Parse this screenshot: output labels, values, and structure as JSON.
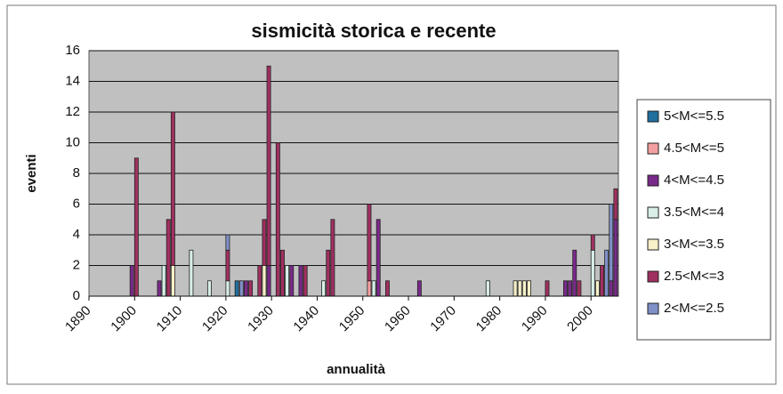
{
  "chart_data": {
    "type": "bar",
    "stacked": true,
    "title": "sismicità storica e recente",
    "x_label": "annualità",
    "y_label": "eventi",
    "x": [
      1899,
      1900,
      1905,
      1906,
      1907,
      1908,
      1912,
      1916,
      1920,
      1922,
      1923,
      1924,
      1925,
      1927,
      1928,
      1929,
      1931,
      1932,
      1933,
      1934,
      1936,
      1937,
      1941,
      1942,
      1943,
      1951,
      1952,
      1953,
      1955,
      1962,
      1977,
      1983,
      1984,
      1985,
      1986,
      1990,
      1994,
      1995,
      1996,
      1997,
      2000,
      2001,
      2002,
      2003,
      2004,
      2005
    ],
    "series": [
      {
        "name": "5<M<=5.5",
        "color": "#1f6f9f",
        "values": [
          0,
          0,
          0,
          0,
          0,
          0,
          0,
          0,
          0,
          1,
          0,
          0,
          0,
          0,
          0,
          0,
          0,
          0,
          0,
          0,
          0,
          0,
          0,
          0,
          0,
          0,
          0,
          0,
          0,
          0,
          0,
          0,
          0,
          0,
          0,
          0,
          0,
          0,
          0,
          0,
          0,
          0,
          0,
          0,
          0,
          0
        ]
      },
      {
        "name": "4.5<M<=5",
        "color": "#f4a0a0",
        "values": [
          0,
          0,
          0,
          0,
          0,
          0,
          0,
          0,
          0,
          0,
          0,
          0,
          0,
          0,
          0,
          0,
          0,
          0,
          0,
          0,
          0,
          0,
          0,
          0,
          0,
          1,
          0,
          0,
          0,
          0,
          0,
          0,
          0,
          0,
          0,
          0,
          0,
          0,
          0,
          0,
          0,
          0,
          0,
          0,
          0,
          0
        ]
      },
      {
        "name": "4<M<=4.5",
        "color": "#7a2a8a",
        "values": [
          2,
          0,
          1,
          0,
          0,
          0,
          0,
          0,
          0,
          0,
          0,
          1,
          0,
          0,
          0,
          2,
          0,
          0,
          0,
          2,
          2,
          0,
          0,
          0,
          0,
          0,
          0,
          5,
          0,
          1,
          0,
          0,
          0,
          0,
          0,
          0,
          1,
          1,
          3,
          0,
          0,
          0,
          0,
          0,
          1,
          5
        ]
      },
      {
        "name": "3.5<M<=4",
        "color": "#d8efe8",
        "values": [
          0,
          0,
          0,
          2,
          0,
          0,
          3,
          1,
          1,
          0,
          0,
          0,
          0,
          0,
          0,
          0,
          0,
          0,
          2,
          0,
          0,
          0,
          1,
          0,
          0,
          0,
          1,
          0,
          0,
          0,
          1,
          0,
          0,
          0,
          0,
          0,
          0,
          0,
          0,
          0,
          3,
          0,
          0,
          0,
          0,
          0
        ]
      },
      {
        "name": "3<M<=3.5",
        "color": "#f8f0c8",
        "values": [
          0,
          0,
          0,
          0,
          0,
          2,
          0,
          0,
          0,
          0,
          0,
          0,
          0,
          0,
          2,
          0,
          0,
          0,
          0,
          0,
          0,
          0,
          0,
          0,
          0,
          0,
          0,
          0,
          0,
          0,
          0,
          1,
          1,
          1,
          1,
          0,
          0,
          0,
          0,
          0,
          0,
          1,
          0,
          0,
          0,
          0
        ]
      },
      {
        "name": "2.5<M<=3",
        "color": "#a03060",
        "values": [
          0,
          9,
          0,
          0,
          5,
          10,
          0,
          0,
          2,
          0,
          0,
          0,
          1,
          2,
          3,
          13,
          10,
          3,
          0,
          0,
          0,
          2,
          0,
          3,
          5,
          5,
          0,
          0,
          1,
          0,
          0,
          0,
          0,
          0,
          0,
          1,
          0,
          0,
          0,
          1,
          1,
          0,
          2,
          0,
          0,
          2
        ]
      },
      {
        "name": "2<M<=2.5",
        "color": "#8090c8",
        "values": [
          0,
          0,
          0,
          0,
          0,
          0,
          0,
          0,
          1,
          0,
          1,
          0,
          0,
          0,
          0,
          0,
          0,
          0,
          0,
          0,
          0,
          0,
          0,
          0,
          0,
          0,
          0,
          0,
          0,
          0,
          0,
          0,
          0,
          0,
          0,
          0,
          0,
          0,
          0,
          0,
          0,
          0,
          0,
          3,
          5,
          0
        ]
      }
    ],
    "xlim": [
      1890,
      2006
    ],
    "xticks": [
      1890,
      1900,
      1910,
      1920,
      1930,
      1940,
      1950,
      1960,
      1970,
      1980,
      1990,
      2000
    ],
    "ylim": [
      0,
      16
    ],
    "yticks": [
      0,
      2,
      4,
      6,
      8,
      10,
      12,
      14,
      16
    ],
    "grid": true,
    "legend": "right",
    "plot_background": "#c0c0c0"
  }
}
